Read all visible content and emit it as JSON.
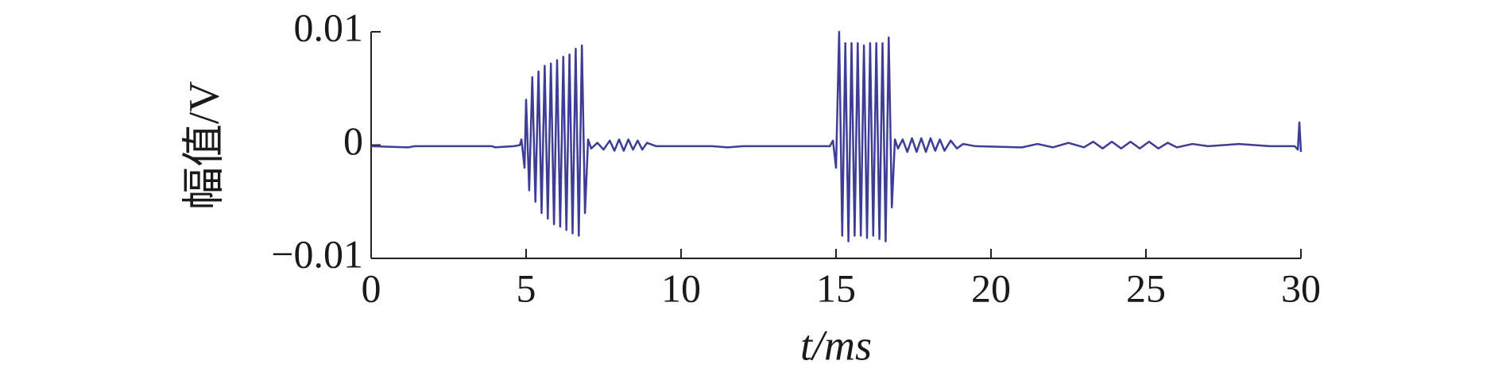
{
  "chart_data": {
    "type": "line",
    "xlabel": "t/ms",
    "ylabel": "幅值/V",
    "xlim": [
      0,
      30
    ],
    "xticks": [
      0,
      5,
      10,
      15,
      20,
      25,
      30
    ],
    "ylim": [
      -0.01,
      0.01
    ],
    "yticks": [
      {
        "value": -0.01,
        "label": "−0.01"
      },
      0,
      0.01
    ],
    "x": [
      0,
      1.2,
      1.4,
      3.9,
      4.0,
      4.6,
      4.8,
      4.85,
      4.95,
      5.0,
      5.1,
      5.2,
      5.3,
      5.4,
      5.5,
      5.6,
      5.7,
      5.8,
      5.9,
      6.0,
      6.1,
      6.2,
      6.3,
      6.4,
      6.5,
      6.6,
      6.7,
      6.8,
      6.9,
      7.0,
      7.1,
      7.3,
      7.5,
      7.7,
      7.85,
      8.0,
      8.15,
      8.3,
      8.45,
      8.6,
      8.75,
      8.9,
      9.2,
      11,
      11.5,
      12,
      14.5,
      14.8,
      14.9,
      15.0,
      15.1,
      15.2,
      15.3,
      15.4,
      15.5,
      15.6,
      15.7,
      15.8,
      15.9,
      16.0,
      16.1,
      16.2,
      16.3,
      16.4,
      16.5,
      16.6,
      16.7,
      16.8,
      16.9,
      17.0,
      17.15,
      17.3,
      17.45,
      17.6,
      17.75,
      17.9,
      18.05,
      18.2,
      18.35,
      18.5,
      18.7,
      18.9,
      19.1,
      19.5,
      21,
      21.5,
      22,
      22.5,
      23,
      23.3,
      23.6,
      23.9,
      24.2,
      24.5,
      24.8,
      25.1,
      25.4,
      25.7,
      26,
      26.5,
      27,
      28,
      29,
      29.8,
      29.9,
      29.95,
      30
    ],
    "series": [
      {
        "color": "#3d3d96",
        "values": [
          -0.0001,
          -0.0002,
          -0.0001,
          -0.0001,
          -0.0002,
          -0.0001,
          0.0,
          0.0005,
          -0.002,
          0.004,
          -0.004,
          0.006,
          -0.005,
          0.0065,
          -0.006,
          0.007,
          -0.0065,
          0.0072,
          -0.007,
          0.0075,
          -0.0072,
          0.0078,
          -0.0075,
          0.008,
          -0.0078,
          0.0085,
          -0.008,
          0.0088,
          -0.006,
          0.0005,
          -0.0003,
          0.0002,
          -0.0004,
          0.0004,
          -0.0005,
          0.0005,
          -0.0005,
          0.0005,
          -0.0004,
          0.0004,
          -0.0004,
          0.0002,
          -0.0001,
          -0.0001,
          -0.0002,
          -0.0001,
          -0.0001,
          -0.0001,
          0.0004,
          -0.002,
          0.01,
          -0.008,
          0.009,
          -0.0085,
          0.009,
          -0.008,
          0.009,
          -0.008,
          0.0088,
          -0.0082,
          0.009,
          -0.008,
          0.009,
          -0.0083,
          0.009,
          -0.0085,
          0.0095,
          -0.0055,
          0.0005,
          -0.0003,
          0.0005,
          -0.0006,
          0.0006,
          -0.0006,
          0.0006,
          -0.0006,
          0.0006,
          -0.0005,
          0.0005,
          -0.0005,
          0.0004,
          -0.0003,
          0.0001,
          -0.0001,
          -0.0002,
          0.0001,
          -0.0002,
          0.0002,
          -0.0002,
          0.0003,
          -0.0003,
          0.0003,
          -0.0003,
          0.0003,
          -0.0003,
          0.0003,
          -0.0003,
          0.0002,
          -0.0002,
          0.0001,
          -0.0001,
          0.0001,
          -0.0001,
          -0.0001,
          -0.0004,
          0.002,
          -0.0006
        ]
      }
    ]
  }
}
